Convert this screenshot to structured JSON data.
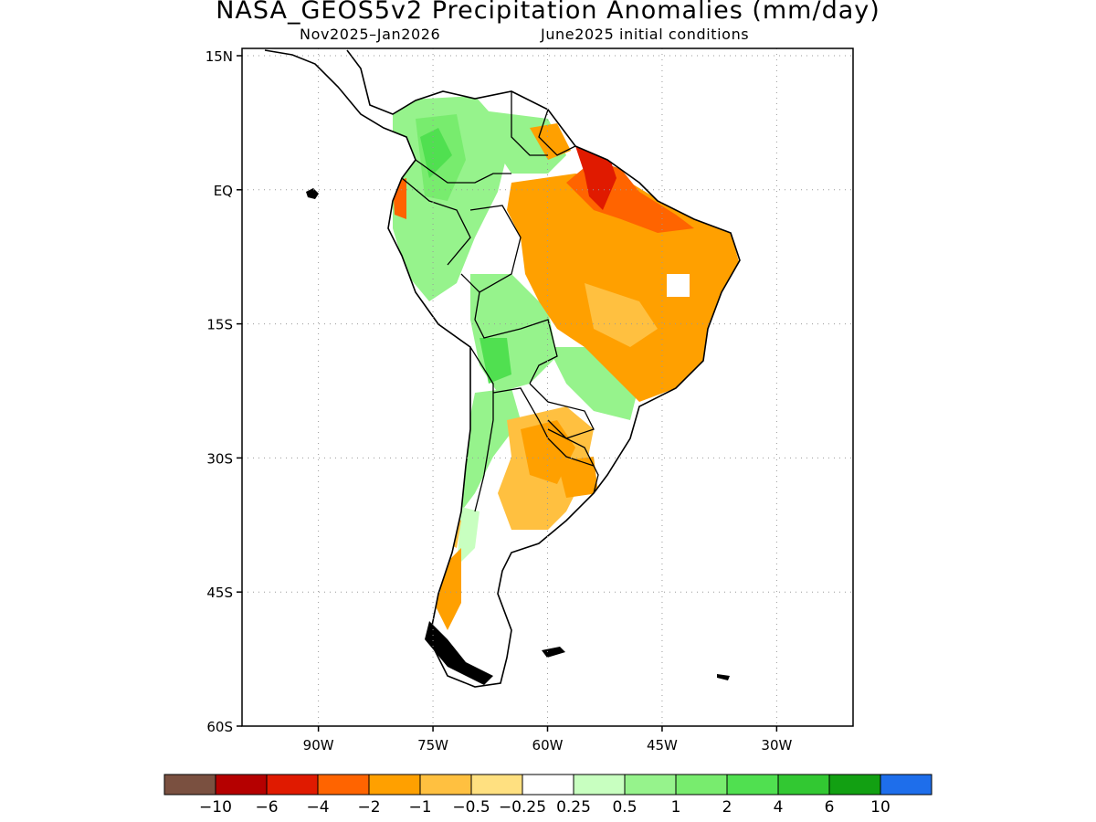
{
  "title": "NASA_GEOS5v2 Precipitation Anomalies (mm/day)",
  "subtitle_period": "Nov2025–Jan2026",
  "subtitle_init": "June2025 initial conditions",
  "axes": {
    "lat_labels": [
      "15N",
      "EQ",
      "15S",
      "30S",
      "45S",
      "60S"
    ],
    "lat_values": [
      15,
      0,
      -15,
      -30,
      -45,
      -60
    ],
    "lon_labels": [
      "90W",
      "75W",
      "60W",
      "45W",
      "30W"
    ],
    "lon_values": [
      -90,
      -75,
      -60,
      -45,
      -30
    ],
    "lon_range": [
      -100,
      -20
    ],
    "lat_range": [
      -60,
      15
    ],
    "grid": "dotted"
  },
  "colorbar": {
    "colors": [
      "#7a5040",
      "#b50000",
      "#e01a00",
      "#ff6400",
      "#ffa000",
      "#ffc040",
      "#ffe080",
      "#ffffff",
      "#c8ffc0",
      "#96f38c",
      "#78ec6e",
      "#50e050",
      "#32c832",
      "#12a012",
      "#1e6eeb"
    ],
    "tick_labels": [
      "−10",
      "−6",
      "−4",
      "−2",
      "−1",
      "−0.5",
      "−0.25",
      "0.25",
      "0.5",
      "1",
      "2",
      "4",
      "6",
      "10"
    ]
  },
  "map_colors": {
    "land_outline": "#000000",
    "dry_strong": "#ff6400",
    "dry_extreme": "#e01a00",
    "dry_moderate": "#ffa000",
    "dry_weak": "#ffc040",
    "wet_moderate": "#78ec6e",
    "wet_strong": "#50e050",
    "wet_weak": "#96f38c"
  }
}
